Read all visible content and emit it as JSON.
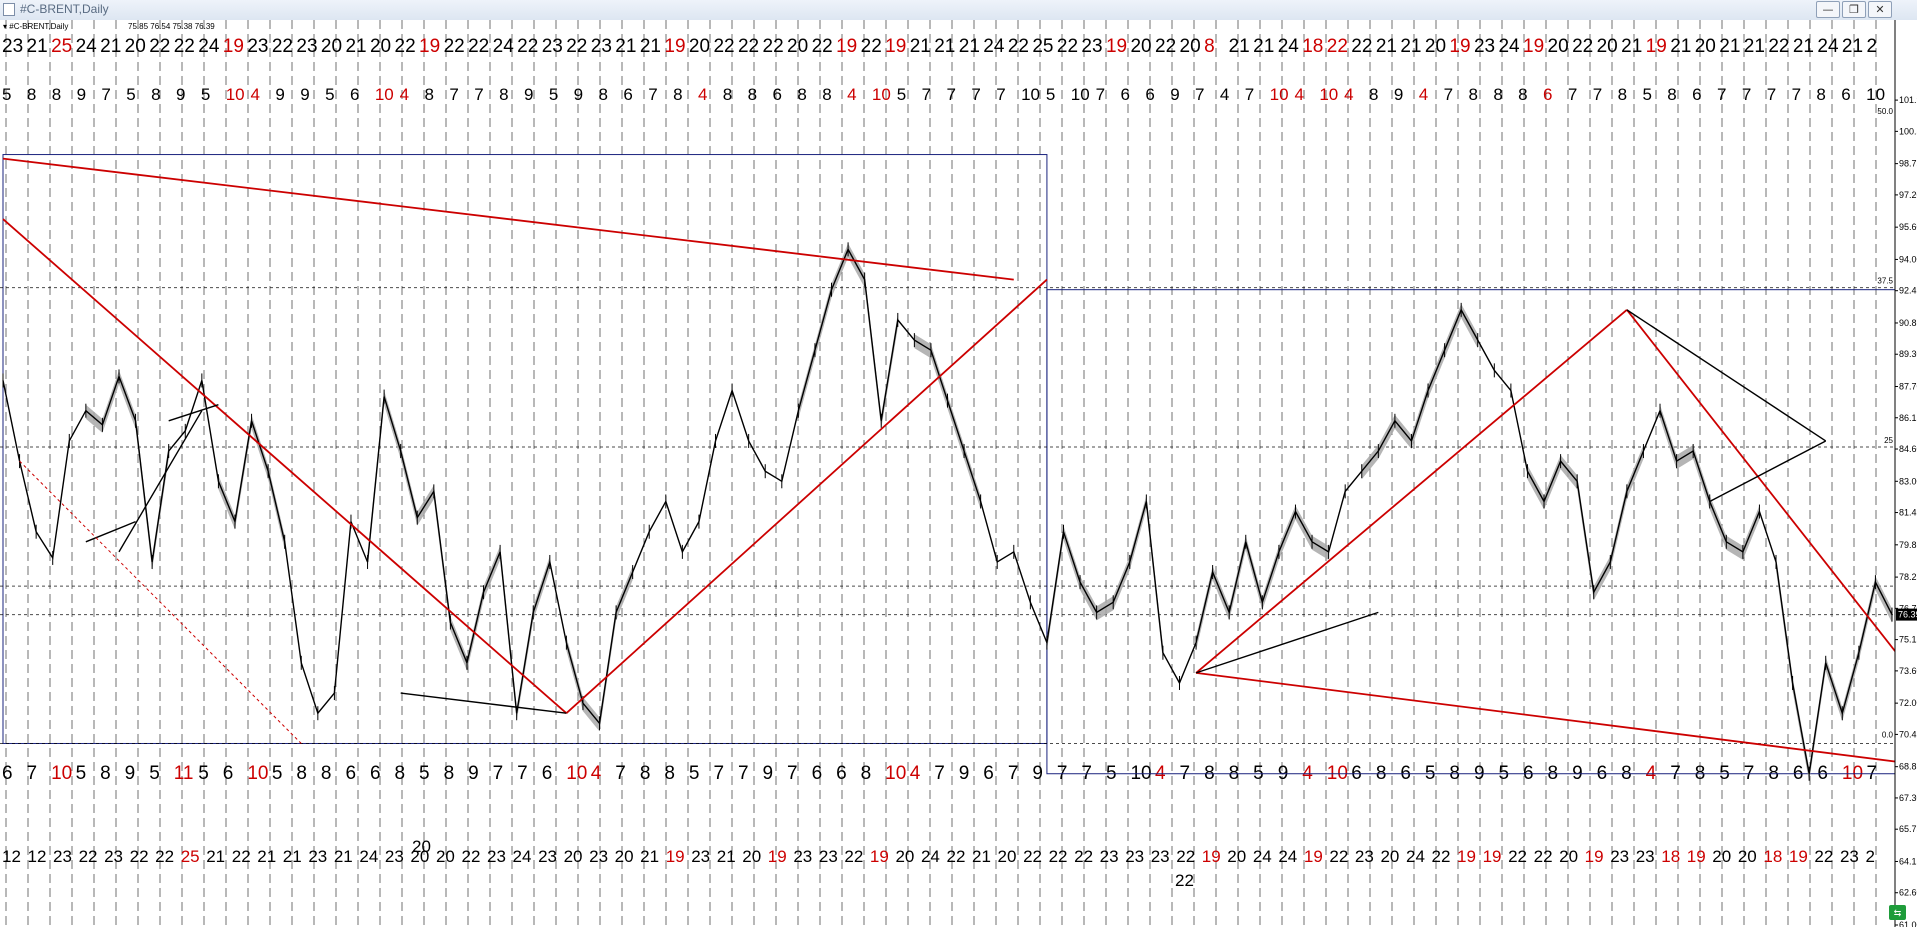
{
  "window": {
    "title": "#C-BRENT,Daily",
    "minimize": "—",
    "restore": "❐",
    "close": "✕"
  },
  "chart_header": {
    "symbol_label": "▾ #C-BRENT,Daily",
    "ohlc": "75.85 76.54 75.38 76.39"
  },
  "colors": {
    "price": "#000000",
    "trend": "#cc0000",
    "shade": "#a8a8a8",
    "box": "#1a237e",
    "date_red": "#cc0000",
    "badge": "#1e9c3a"
  },
  "chart_data": {
    "type": "line",
    "title": "#C-BRENT,Daily",
    "xlabel": "",
    "ylabel": "",
    "y_axis_labels": [
      "101.90",
      "100.35",
      "98.75",
      "97.20",
      "95.60",
      "94.00",
      "92.45",
      "90.85",
      "89.30",
      "87.70",
      "86.15",
      "84.60",
      "83.00",
      "81.45",
      "79.85",
      "78.25",
      "76.70",
      "75.15",
      "73.60",
      "72.00",
      "70.45",
      "68.85",
      "67.30",
      "65.75",
      "64.15",
      "62.60",
      "61.00"
    ],
    "ylim": [
      61.0,
      102.5
    ],
    "grid": "vertical dashed separators",
    "current_price": "76.39",
    "fib_level_labels": [
      "50.0",
      "37.5",
      "25",
      "0.0"
    ],
    "date_rows": {
      "row_1": [
        [
          "23",
          0
        ],
        [
          "21",
          0
        ],
        [
          "25",
          1
        ],
        [
          "24",
          0
        ],
        [
          "21",
          0
        ],
        [
          "20",
          0
        ],
        [
          "22",
          0
        ],
        [
          "22",
          0
        ],
        [
          "24",
          0
        ],
        [
          "19",
          1
        ],
        [
          "23",
          0
        ],
        [
          "22",
          0
        ],
        [
          "23",
          0
        ],
        [
          "20",
          0
        ],
        [
          "21",
          0
        ],
        [
          "20",
          0
        ],
        [
          "22",
          0
        ],
        [
          "19",
          1
        ],
        [
          "22",
          0
        ],
        [
          "22",
          0
        ],
        [
          "24",
          0
        ],
        [
          "22",
          0
        ],
        [
          "23",
          0
        ],
        [
          "22",
          0
        ],
        [
          "23",
          0
        ],
        [
          "21",
          0
        ],
        [
          "21",
          0
        ],
        [
          "19",
          1
        ],
        [
          "20",
          0
        ],
        [
          "22",
          0
        ],
        [
          "22",
          0
        ],
        [
          "22",
          0
        ],
        [
          "20",
          0
        ],
        [
          "22",
          0
        ],
        [
          "19",
          1
        ],
        [
          "22",
          0
        ],
        [
          "19",
          1
        ],
        [
          "21",
          0
        ],
        [
          "21",
          0
        ],
        [
          "21",
          0
        ],
        [
          "24",
          0
        ],
        [
          "22",
          0
        ],
        [
          "25",
          0
        ],
        [
          "22",
          0
        ],
        [
          "23",
          0
        ],
        [
          "19",
          1
        ],
        [
          "20",
          0
        ],
        [
          "22",
          0
        ],
        [
          "20",
          0
        ],
        [
          "8",
          1
        ],
        [
          "21",
          0
        ],
        [
          "21",
          0
        ],
        [
          "24",
          0
        ],
        [
          "18",
          1
        ],
        [
          "22",
          1
        ],
        [
          "22",
          0
        ],
        [
          "21",
          0
        ],
        [
          "21",
          0
        ],
        [
          "20",
          0
        ],
        [
          "19",
          1
        ],
        [
          "23",
          0
        ],
        [
          "24",
          0
        ],
        [
          "19",
          1
        ],
        [
          "20",
          0
        ],
        [
          "22",
          0
        ],
        [
          "20",
          0
        ],
        [
          "21",
          0
        ],
        [
          "19",
          1
        ],
        [
          "21",
          0
        ],
        [
          "20",
          0
        ],
        [
          "21",
          0
        ],
        [
          "21",
          0
        ],
        [
          "22",
          0
        ],
        [
          "21",
          0
        ],
        [
          "24",
          0
        ],
        [
          "21",
          0
        ],
        [
          "2",
          0
        ]
      ],
      "row_2": [
        [
          "5",
          0
        ],
        [
          "8",
          0
        ],
        [
          "8",
          0
        ],
        [
          "9",
          0
        ],
        [
          "7",
          0
        ],
        [
          "5",
          0
        ],
        [
          "8",
          0
        ],
        [
          "9",
          0
        ],
        [
          "5",
          0
        ],
        [
          "10",
          1
        ],
        [
          "4",
          1
        ],
        [
          "9",
          0
        ],
        [
          "9",
          0
        ],
        [
          "5",
          0
        ],
        [
          "6",
          0
        ],
        [
          "10",
          1
        ],
        [
          "4",
          1
        ],
        [
          "8",
          0
        ],
        [
          "7",
          0
        ],
        [
          "7",
          0
        ],
        [
          "8",
          0
        ],
        [
          "9",
          0
        ],
        [
          "5",
          0
        ],
        [
          "9",
          0
        ],
        [
          "8",
          0
        ],
        [
          "6",
          0
        ],
        [
          "7",
          0
        ],
        [
          "8",
          0
        ],
        [
          "4",
          1
        ],
        [
          "8",
          0
        ],
        [
          "8",
          0
        ],
        [
          "6",
          0
        ],
        [
          "8",
          0
        ],
        [
          "8",
          0
        ],
        [
          "4",
          1
        ],
        [
          "10",
          1
        ],
        [
          "5",
          0
        ],
        [
          "7",
          0
        ],
        [
          "7",
          0
        ],
        [
          "7",
          0
        ],
        [
          "7",
          0
        ],
        [
          "10",
          0
        ],
        [
          "5",
          0
        ],
        [
          "10",
          0
        ],
        [
          "7",
          0
        ],
        [
          "6",
          0
        ],
        [
          "6",
          0
        ],
        [
          "9",
          0
        ],
        [
          "7",
          0
        ],
        [
          "4",
          0
        ],
        [
          "7",
          0
        ],
        [
          "10",
          1
        ],
        [
          "4",
          1
        ],
        [
          "10",
          1
        ],
        [
          "4",
          1
        ],
        [
          "8",
          0
        ],
        [
          "9",
          0
        ],
        [
          "4",
          1
        ],
        [
          "7",
          0
        ],
        [
          "8",
          0
        ],
        [
          "8",
          0
        ],
        [
          "8",
          0
        ],
        [
          "6",
          1
        ],
        [
          "7",
          0
        ],
        [
          "7",
          0
        ],
        [
          "8",
          0
        ],
        [
          "5",
          0
        ],
        [
          "8",
          0
        ],
        [
          "6",
          0
        ],
        [
          "7",
          0
        ],
        [
          "7",
          0
        ],
        [
          "7",
          0
        ],
        [
          "7",
          0
        ],
        [
          "8",
          0
        ],
        [
          "6",
          0
        ],
        [
          "10",
          0
        ]
      ],
      "row_3": [
        [
          "6",
          0
        ],
        [
          "7",
          0
        ],
        [
          "10",
          1
        ],
        [
          "5",
          0
        ],
        [
          "8",
          0
        ],
        [
          "9",
          0
        ],
        [
          "5",
          0
        ],
        [
          "11",
          1
        ],
        [
          "5",
          0
        ],
        [
          "6",
          0
        ],
        [
          "10",
          1
        ],
        [
          "5",
          0
        ],
        [
          "8",
          0
        ],
        [
          "8",
          0
        ],
        [
          "6",
          0
        ],
        [
          "6",
          0
        ],
        [
          "8",
          0
        ],
        [
          "5",
          0
        ],
        [
          "8",
          0
        ],
        [
          "9",
          0
        ],
        [
          "7",
          0
        ],
        [
          "7",
          0
        ],
        [
          "6",
          0
        ],
        [
          "10",
          1
        ],
        [
          "4",
          1
        ],
        [
          "7",
          0
        ],
        [
          "8",
          0
        ],
        [
          "8",
          0
        ],
        [
          "5",
          0
        ],
        [
          "7",
          0
        ],
        [
          "7",
          0
        ],
        [
          "9",
          0
        ],
        [
          "7",
          0
        ],
        [
          "6",
          0
        ],
        [
          "6",
          0
        ],
        [
          "8",
          0
        ],
        [
          "10",
          1
        ],
        [
          "4",
          1
        ],
        [
          "7",
          0
        ],
        [
          "9",
          0
        ],
        [
          "6",
          0
        ],
        [
          "7",
          0
        ],
        [
          "9",
          0
        ],
        [
          "7",
          0
        ],
        [
          "7",
          0
        ],
        [
          "5",
          0
        ],
        [
          "10",
          0
        ],
        [
          "4",
          1
        ],
        [
          "7",
          0
        ],
        [
          "8",
          0
        ],
        [
          "8",
          0
        ],
        [
          "5",
          0
        ],
        [
          "9",
          0
        ],
        [
          "4",
          1
        ],
        [
          "10",
          1
        ],
        [
          "6",
          0
        ],
        [
          "8",
          0
        ],
        [
          "6",
          0
        ],
        [
          "5",
          0
        ],
        [
          "8",
          0
        ],
        [
          "9",
          0
        ],
        [
          "5",
          0
        ],
        [
          "6",
          0
        ],
        [
          "8",
          0
        ],
        [
          "9",
          0
        ],
        [
          "6",
          0
        ],
        [
          "8",
          0
        ],
        [
          "4",
          1
        ],
        [
          "7",
          0
        ],
        [
          "8",
          0
        ],
        [
          "5",
          0
        ],
        [
          "7",
          0
        ],
        [
          "8",
          0
        ],
        [
          "6",
          0
        ],
        [
          "6",
          0
        ],
        [
          "10",
          1
        ],
        [
          "7",
          0
        ]
      ],
      "row_4": [
        [
          "12",
          0
        ],
        [
          "12",
          0
        ],
        [
          "23",
          0
        ],
        [
          "22",
          0
        ],
        [
          "23",
          0
        ],
        [
          "22",
          0
        ],
        [
          "22",
          0
        ],
        [
          "25",
          1
        ],
        [
          "21",
          0
        ],
        [
          "22",
          0
        ],
        [
          "21",
          0
        ],
        [
          "21",
          0
        ],
        [
          "23",
          0
        ],
        [
          "21",
          0
        ],
        [
          "24",
          0
        ],
        [
          "23",
          0
        ],
        [
          "20",
          0
        ],
        [
          "20",
          0
        ],
        [
          "22",
          0
        ],
        [
          "23",
          0
        ],
        [
          "24",
          0
        ],
        [
          "23",
          0
        ],
        [
          "20",
          0
        ],
        [
          "23",
          0
        ],
        [
          "20",
          0
        ],
        [
          "21",
          0
        ],
        [
          "19",
          1
        ],
        [
          "23",
          0
        ],
        [
          "21",
          0
        ],
        [
          "20",
          0
        ],
        [
          "19",
          1
        ],
        [
          "23",
          0
        ],
        [
          "23",
          0
        ],
        [
          "22",
          0
        ],
        [
          "19",
          1
        ],
        [
          "20",
          0
        ],
        [
          "24",
          0
        ],
        [
          "22",
          0
        ],
        [
          "21",
          0
        ],
        [
          "20",
          0
        ],
        [
          "22",
          0
        ],
        [
          "22",
          0
        ],
        [
          "22",
          0
        ],
        [
          "23",
          0
        ],
        [
          "23",
          0
        ],
        [
          "23",
          0
        ],
        [
          "22",
          0
        ],
        [
          "19",
          1
        ],
        [
          "20",
          0
        ],
        [
          "24",
          0
        ],
        [
          "24",
          0
        ],
        [
          "19",
          1
        ],
        [
          "22",
          0
        ],
        [
          "23",
          0
        ],
        [
          "20",
          0
        ],
        [
          "24",
          0
        ],
        [
          "22",
          0
        ],
        [
          "19",
          1
        ],
        [
          "19",
          1
        ],
        [
          "22",
          0
        ],
        [
          "22",
          0
        ],
        [
          "20",
          0
        ],
        [
          "19",
          1
        ],
        [
          "23",
          0
        ],
        [
          "23",
          0
        ],
        [
          "18",
          1
        ],
        [
          "19",
          1
        ],
        [
          "20",
          0
        ],
        [
          "20",
          0
        ],
        [
          "18",
          1
        ],
        [
          "19",
          1
        ],
        [
          "22",
          0
        ],
        [
          "23",
          0
        ],
        [
          "2",
          0
        ]
      ],
      "extra_labels": [
        "20",
        "22"
      ]
    },
    "series": [
      {
        "values": [
          88.0,
          84.0,
          80.5,
          79.2,
          85.0,
          86.5,
          85.8,
          88.2,
          86.0,
          79.0,
          84.5,
          85.5,
          88.0,
          83.0,
          81.0,
          86.0,
          83.5,
          80.0,
          74.0,
          71.5,
          72.5,
          81.0,
          79.0,
          87.2,
          84.5,
          81.2,
          82.5,
          76.0,
          74.0,
          77.5,
          79.5,
          71.5,
          76.5,
          79.0,
          75.0,
          72.0,
          71.0,
          76.5,
          78.5,
          80.5,
          82.0,
          79.5,
          81.0,
          85.0,
          87.5,
          85.0,
          83.5,
          83.0,
          86.5,
          89.5,
          92.5,
          94.5,
          93.0,
          86.0,
          91.0,
          90.0,
          89.5,
          87.0,
          84.5,
          82.0,
          79.0,
          79.5,
          77.0,
          75.0,
          80.5,
          78.0,
          76.5,
          77.0,
          79.0,
          82.0,
          74.5,
          73.0,
          75.0,
          78.5,
          76.5,
          80.0,
          77.0,
          79.5,
          81.5,
          80.0,
          79.5,
          82.5,
          83.5,
          84.5,
          86.0,
          85.0,
          87.5,
          89.5,
          91.5,
          90.0,
          88.5,
          87.5,
          83.5,
          82.0,
          84.0,
          83.0,
          77.5,
          79.0,
          82.5,
          84.5,
          86.5,
          84.0,
          84.5,
          82.0,
          80.0,
          79.5,
          81.5,
          79.0,
          73.0,
          68.5,
          74.0,
          71.5,
          74.5,
          78.0,
          76.39
        ]
      }
    ],
    "trend_lines": {
      "red": [
        [
          0,
          99.0,
          61,
          93.0
        ],
        [
          0,
          96.0,
          34,
          71.5
        ],
        [
          34,
          71.5,
          63,
          93.0
        ],
        [
          72,
          73.5,
          98,
          91.5
        ],
        [
          72,
          73.5,
          120,
          68.5
        ],
        [
          98,
          91.5,
          120,
          68.5
        ]
      ],
      "black": [
        [
          24,
          72.5,
          34,
          71.5
        ],
        [
          7,
          79.5,
          12,
          86.5
        ],
        [
          72,
          73.5,
          83,
          76.5
        ],
        [
          98,
          91.5,
          110,
          85.0
        ],
        [
          103,
          82.0,
          110,
          85.0
        ],
        [
          5,
          80.0,
          8,
          81.0
        ],
        [
          13,
          86.8,
          10,
          86.0
        ]
      ]
    },
    "boxes": {
      "left": {
        "x_start": 0,
        "x_end": 63,
        "y_top": 99.2,
        "y_bottom": 70.0
      },
      "right": {
        "x_start": 63,
        "x_end": 125,
        "y_top": 92.5,
        "y_bottom": 68.5
      }
    },
    "hlines": [
      92.6,
      84.7,
      77.8,
      76.39,
      70.0
    ]
  }
}
